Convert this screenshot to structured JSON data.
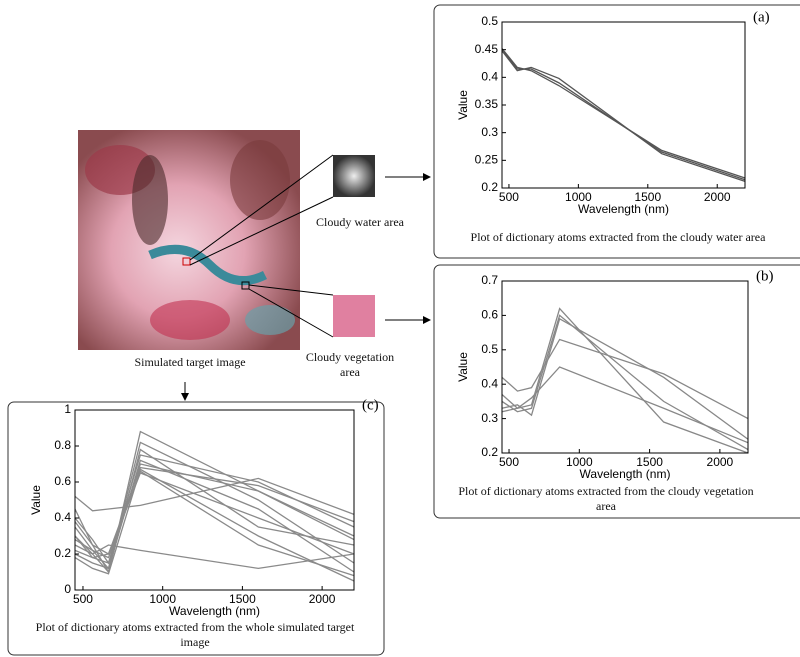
{
  "figure": {
    "image_caption": "Simulated target image",
    "water_label": "Cloudy water area",
    "vegetation_label": "Cloudy vegetation area"
  },
  "chart_data": [
    {
      "type": "line",
      "label": "(a)",
      "caption": "Plot of dictionary atoms extracted from the cloudy water area",
      "xlabel": "Wavelength (nm)",
      "ylabel": "Value",
      "color": "#555555",
      "x": [
        450,
        560,
        660,
        860,
        1600,
        2200
      ],
      "xlim": [
        450,
        2200
      ],
      "xticks": [
        500,
        1000,
        1500,
        2000
      ],
      "ylim": [
        0.2,
        0.5
      ],
      "yticks": [
        0.2,
        0.25,
        0.3,
        0.35,
        0.4,
        0.45,
        0.5
      ],
      "series": [
        {
          "values": [
            0.45,
            0.415,
            0.415,
            0.39,
            0.265,
            0.215
          ]
        },
        {
          "values": [
            0.448,
            0.412,
            0.418,
            0.398,
            0.262,
            0.212
          ]
        },
        {
          "values": [
            0.452,
            0.418,
            0.412,
            0.385,
            0.268,
            0.218
          ]
        }
      ]
    },
    {
      "type": "line",
      "label": "(b)",
      "caption": "Plot of dictionary atoms extracted from the cloudy vegetation area",
      "xlabel": "Wavelength (nm)",
      "ylabel": "Value",
      "color": "#888888",
      "x": [
        450,
        560,
        660,
        860,
        1600,
        2200
      ],
      "xlim": [
        450,
        2200
      ],
      "xticks": [
        500,
        1000,
        1500,
        2000
      ],
      "ylim": [
        0.2,
        0.7
      ],
      "yticks": [
        0.2,
        0.3,
        0.4,
        0.5,
        0.6,
        0.7
      ],
      "series": [
        {
          "values": [
            0.37,
            0.33,
            0.34,
            0.62,
            0.29,
            0.2
          ]
        },
        {
          "values": [
            0.35,
            0.32,
            0.33,
            0.6,
            0.35,
            0.21
          ]
        },
        {
          "values": [
            0.33,
            0.34,
            0.31,
            0.59,
            0.42,
            0.24
          ]
        },
        {
          "values": [
            0.42,
            0.38,
            0.39,
            0.53,
            0.43,
            0.3
          ]
        },
        {
          "values": [
            0.32,
            0.33,
            0.36,
            0.45,
            0.33,
            0.23
          ]
        }
      ]
    },
    {
      "type": "line",
      "label": "(c)",
      "caption": "Plot of dictionary atoms extracted from the whole simulated target image",
      "xlabel": "Wavelength (nm)",
      "ylabel": "Value",
      "color": "#8a8a8a",
      "x": [
        450,
        560,
        660,
        860,
        1600,
        2200
      ],
      "xlim": [
        450,
        2200
      ],
      "xticks": [
        500,
        1000,
        1500,
        2000
      ],
      "ylim": [
        0,
        1
      ],
      "yticks": [
        0,
        0.2,
        0.4,
        0.6,
        0.8,
        1
      ],
      "series": [
        {
          "values": [
            0.52,
            0.44,
            0.45,
            0.47,
            0.62,
            0.42
          ]
        },
        {
          "values": [
            0.3,
            0.2,
            0.25,
            0.22,
            0.12,
            0.2
          ]
        },
        {
          "values": [
            0.45,
            0.25,
            0.1,
            0.88,
            0.55,
            0.3
          ]
        },
        {
          "values": [
            0.35,
            0.22,
            0.12,
            0.82,
            0.5,
            0.15
          ]
        },
        {
          "values": [
            0.25,
            0.2,
            0.1,
            0.78,
            0.35,
            0.25
          ]
        },
        {
          "values": [
            0.3,
            0.18,
            0.15,
            0.75,
            0.6,
            0.35
          ]
        },
        {
          "values": [
            0.2,
            0.15,
            0.12,
            0.72,
            0.45,
            0.1
          ]
        },
        {
          "values": [
            0.38,
            0.25,
            0.2,
            0.68,
            0.58,
            0.38
          ]
        },
        {
          "values": [
            0.28,
            0.22,
            0.18,
            0.66,
            0.25,
            0.08
          ]
        },
        {
          "values": [
            0.22,
            0.18,
            0.2,
            0.65,
            0.4,
            0.2
          ]
        },
        {
          "values": [
            0.4,
            0.28,
            0.15,
            0.7,
            0.55,
            0.28
          ]
        },
        {
          "values": [
            0.18,
            0.12,
            0.09,
            0.67,
            0.3,
            0.05
          ]
        }
      ]
    }
  ]
}
